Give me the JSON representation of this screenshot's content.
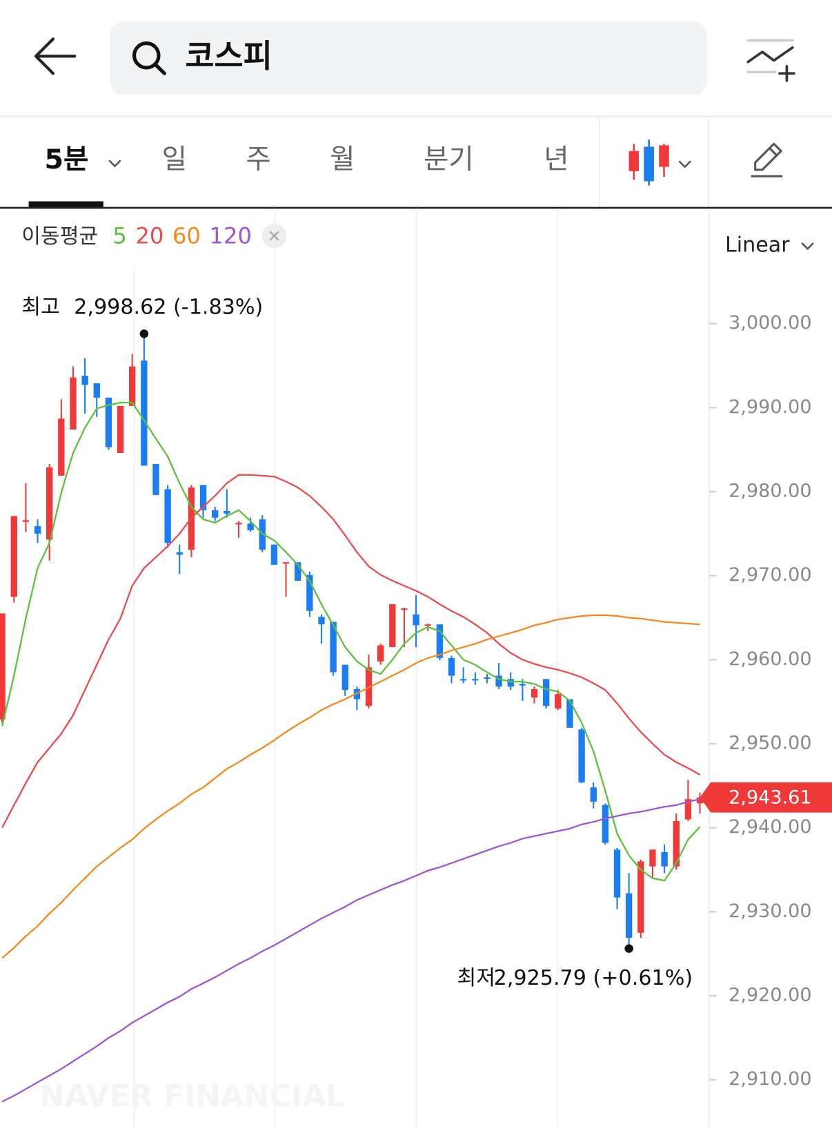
{
  "search": {
    "query": "코스피"
  },
  "tabs": [
    "5분",
    "일",
    "주",
    "월",
    "분기",
    "년"
  ],
  "scale_mode": "Linear",
  "watermark": "NAVER FINANCIAL",
  "chart_data": {
    "type": "candlestick",
    "ma_title": "이동평균",
    "up_color": "#f03a3a",
    "down_color": "#1a7ef0",
    "ylim": [
      2904.4,
      3013.7
    ],
    "yticks": [
      {
        "value": 2910,
        "label": "2,910.00"
      },
      {
        "value": 2920,
        "label": "2,920.00"
      },
      {
        "value": 2930,
        "label": "2,930.00"
      },
      {
        "value": 2940,
        "label": "2,940.00"
      },
      {
        "value": 2950,
        "label": "2,950.00"
      },
      {
        "value": 2960,
        "label": "2,960.00"
      },
      {
        "value": 2970,
        "label": "2,970.00"
      },
      {
        "value": 2980,
        "label": "2,980.00"
      },
      {
        "value": 2990,
        "label": "2,990.00"
      },
      {
        "value": 3000,
        "label": "3,000.00"
      }
    ],
    "open": [
      2952.9,
      2967.5,
      2976.4,
      2975.9,
      2974.3,
      2981.9,
      2987.4,
      2993.8,
      2992.9,
      2991.2,
      2984.6,
      2990.2,
      2995.6,
      2983.3,
      2980.3,
      2972.8,
      2973.1,
      2980.8,
      2977.8,
      2977.7,
      2976.1,
      2976.2,
      2976.7,
      2973.7,
      2971.5,
      2971.6,
      2970.1,
      2965.1,
      2964.5,
      2959.4,
      2956.5,
      2954.5,
      2959.8,
      2961.5,
      2966.0,
      2965.4,
      2964.1,
      2964.2,
      2960.2,
      2957.7,
      2957.7,
      2957.9,
      2958.1,
      2957.7,
      2957.1,
      2955.5,
      2957.7,
      2954.2,
      2955.3,
      2951.7,
      2944.8,
      2942.7,
      2937.4,
      2932.2,
      2927.5,
      2935.4,
      2937.1,
      2935.4,
      2941.0,
      2942.9
    ],
    "high": [
      2965.5,
      2977.1,
      2981.0,
      2976.7,
      2983.3,
      2991.0,
      2994.9,
      2995.9,
      2992.9,
      2991.2,
      2990.2,
      2996.4,
      2998.62,
      2983.3,
      2980.8,
      2973.7,
      2980.8,
      2980.8,
      2978.2,
      2980.3,
      2976.5,
      2976.9,
      2977.2,
      2973.7,
      2971.6,
      2971.6,
      2970.5,
      2965.4,
      2964.5,
      2959.4,
      2956.8,
      2960.6,
      2961.9,
      2966.6,
      2966.2,
      2967.7,
      2964.3,
      2964.2,
      2960.5,
      2959.1,
      2958.5,
      2958.3,
      2959.6,
      2958.5,
      2957.7,
      2956.8,
      2957.7,
      2956.4,
      2955.3,
      2951.9,
      2945.4,
      2942.9,
      2937.6,
      2934.6,
      2936.2,
      2937.4,
      2938.0,
      2941.7,
      2945.7,
      2944.2
    ],
    "low": [
      2952.5,
      2966.8,
      2975.2,
      2973.9,
      2971.8,
      2981.9,
      2987.4,
      2989.3,
      2988.9,
      2985.0,
      2984.6,
      2990.2,
      2983.1,
      2979.6,
      2973.3,
      2970.2,
      2972.2,
      2976.9,
      2976.5,
      2976.9,
      2974.5,
      2975.2,
      2972.8,
      2971.3,
      2967.5,
      2969.4,
      2965.1,
      2961.9,
      2958.1,
      2955.7,
      2954.0,
      2954.2,
      2959.4,
      2961.5,
      2961.5,
      2961.5,
      2963.4,
      2959.9,
      2957.2,
      2957.2,
      2957.0,
      2957.2,
      2956.5,
      2956.4,
      2955.1,
      2954.8,
      2954.2,
      2954.0,
      2951.9,
      2945.3,
      2942.3,
      2938.0,
      2930.3,
      2925.79,
      2926.9,
      2934.1,
      2934.6,
      2935.0,
      2940.8,
      2941.7
    ],
    "close": [
      2965.5,
      2977.1,
      2976.6,
      2975.0,
      2982.9,
      2988.7,
      2993.6,
      2992.7,
      2991.2,
      2985.3,
      2990.2,
      2994.9,
      2983.1,
      2979.6,
      2973.9,
      2972.5,
      2980.5,
      2977.8,
      2976.9,
      2977.4,
      2976.3,
      2975.4,
      2973.1,
      2971.3,
      2971.6,
      2969.4,
      2965.8,
      2964.2,
      2958.5,
      2956.4,
      2955.3,
      2959.1,
      2961.7,
      2966.6,
      2966.1,
      2964.1,
      2964.2,
      2960.2,
      2958.1,
      2957.6,
      2957.6,
      2957.8,
      2956.8,
      2956.8,
      2957.0,
      2956.5,
      2954.5,
      2955.9,
      2951.9,
      2945.4,
      2943.1,
      2938.2,
      2931.7,
      2926.9,
      2936.0,
      2937.4,
      2935.4,
      2940.8,
      2943.4,
      2943.61
    ],
    "series": [
      {
        "name": "5",
        "color": "#5cc23e",
        "values": [
          2952.1,
          2958.1,
          2964.9,
          2970.9,
          2973.9,
          2979.9,
          2984.6,
          2987.6,
          2989.9,
          2990.3,
          2990.6,
          2990.6,
          2988.5,
          2986.3,
          2984.2,
          2981.0,
          2978.2,
          2976.7,
          2976.3,
          2977.1,
          2977.8,
          2976.5,
          2975.0,
          2974.2,
          2972.8,
          2971.3,
          2969.4,
          2966.6,
          2964.1,
          2961.5,
          2959.8,
          2958.8,
          2958.3,
          2960.0,
          2961.9,
          2963.2,
          2963.9,
          2963.4,
          2961.7,
          2960.0,
          2959.4,
          2958.5,
          2957.7,
          2957.4,
          2957.4,
          2957.1,
          2956.5,
          2956.2,
          2955.1,
          2952.5,
          2949.1,
          2944.4,
          2939.3,
          2936.7,
          2935.0,
          2934.0,
          2933.7,
          2935.8,
          2938.6,
          2940.1
        ]
      },
      {
        "name": "20",
        "color": "#ec4b4b",
        "values": [
          2940.0,
          2942.7,
          2945.3,
          2947.8,
          2949.5,
          2951.2,
          2953.4,
          2956.4,
          2959.4,
          2962.4,
          2964.9,
          2968.8,
          2970.9,
          2972.2,
          2973.5,
          2975.0,
          2976.9,
          2978.2,
          2979.5,
          2981.0,
          2982.0,
          2982.0,
          2981.9,
          2981.8,
          2981.2,
          2980.5,
          2979.5,
          2978.2,
          2976.7,
          2974.8,
          2972.8,
          2971.1,
          2970.1,
          2969.4,
          2968.8,
          2968.2,
          2967.5,
          2966.6,
          2965.8,
          2965.1,
          2964.2,
          2963.2,
          2961.9,
          2960.8,
          2960.0,
          2959.5,
          2959.1,
          2958.8,
          2958.4,
          2957.9,
          2957.2,
          2956.4,
          2954.8,
          2953.0,
          2951.4,
          2950.0,
          2948.7,
          2947.8,
          2947.1,
          2946.3
        ]
      },
      {
        "name": "60",
        "color": "#f5891f",
        "values": [
          2924.5,
          2925.7,
          2927.1,
          2928.3,
          2929.8,
          2931.1,
          2932.6,
          2934.0,
          2935.4,
          2936.5,
          2937.6,
          2938.6,
          2939.9,
          2941.0,
          2942.0,
          2942.9,
          2944.0,
          2944.8,
          2945.9,
          2947.0,
          2947.8,
          2948.7,
          2949.5,
          2950.4,
          2951.4,
          2952.3,
          2953.1,
          2954.0,
          2954.7,
          2955.3,
          2956.0,
          2956.7,
          2957.4,
          2958.1,
          2958.8,
          2959.6,
          2960.2,
          2960.6,
          2961.1,
          2961.5,
          2961.9,
          2962.4,
          2962.8,
          2963.2,
          2963.6,
          2964.1,
          2964.4,
          2964.8,
          2965.0,
          2965.2,
          2965.3,
          2965.3,
          2965.2,
          2965.0,
          2964.9,
          2964.7,
          2964.5,
          2964.4,
          2964.3,
          2964.2
        ]
      },
      {
        "name": "120",
        "color": "#9b55d6",
        "values": [
          2907.4,
          2908.1,
          2908.9,
          2909.7,
          2910.5,
          2911.3,
          2912.2,
          2913.1,
          2914.0,
          2915.0,
          2915.8,
          2916.8,
          2917.6,
          2918.4,
          2919.2,
          2919.9,
          2920.8,
          2921.5,
          2922.2,
          2923.0,
          2923.8,
          2924.5,
          2925.3,
          2926.0,
          2926.8,
          2927.6,
          2928.4,
          2929.2,
          2929.9,
          2930.6,
          2931.4,
          2932.0,
          2932.6,
          2933.2,
          2933.7,
          2934.3,
          2934.9,
          2935.3,
          2935.8,
          2936.3,
          2936.8,
          2937.3,
          2937.8,
          2938.2,
          2938.7,
          2939.0,
          2939.3,
          2939.6,
          2939.9,
          2940.4,
          2940.7,
          2941.1,
          2941.4,
          2941.7,
          2941.9,
          2942.2,
          2942.5,
          2942.7,
          2943.1,
          2943.4
        ]
      }
    ],
    "high_annotation": {
      "label": "최고",
      "text": "2,998.62 (-1.83%)"
    },
    "low_annotation": {
      "label": "최저",
      "text": "2,925.79 (+0.61%)"
    },
    "last_price": {
      "value": 2943.61,
      "label": "2,943.61"
    }
  }
}
